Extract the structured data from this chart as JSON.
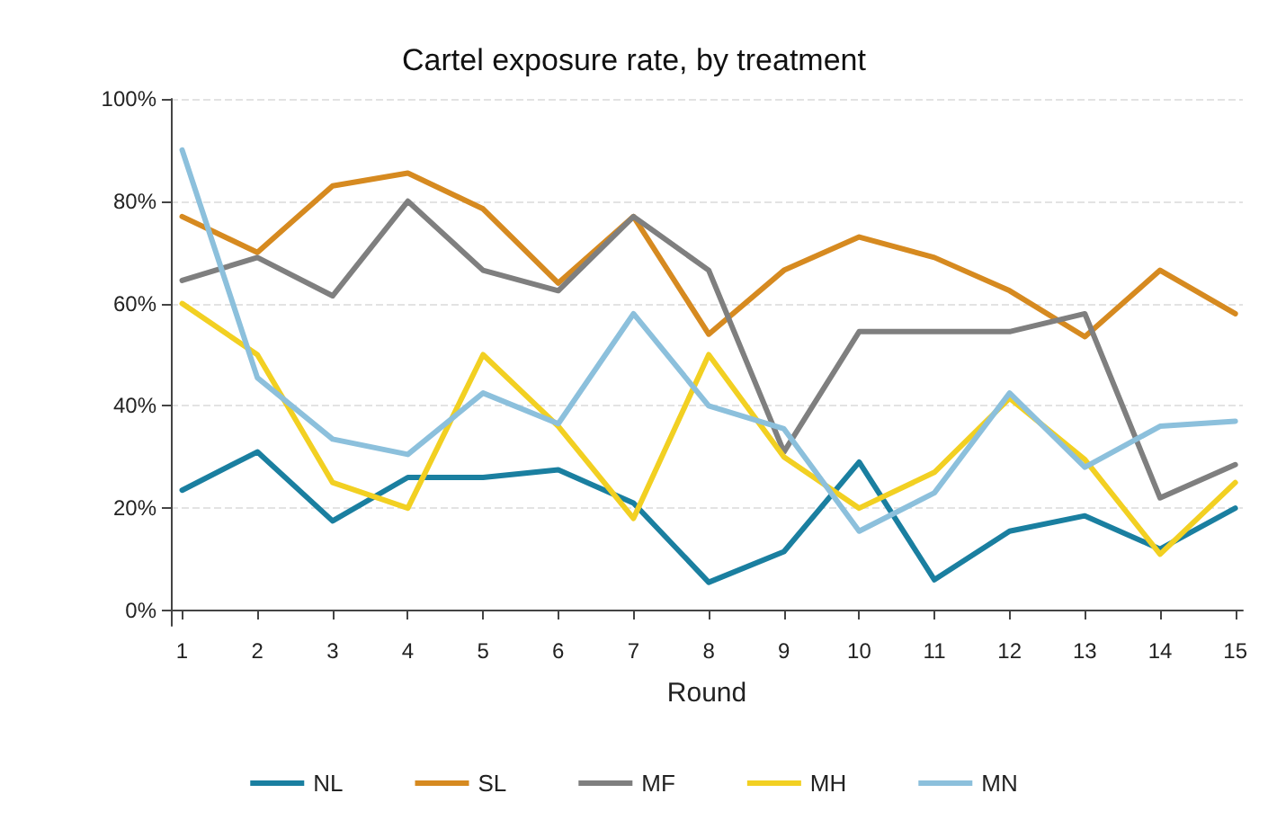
{
  "chart_data": {
    "type": "line",
    "title": "Cartel exposure rate, by treatment",
    "xlabel": "Round",
    "x": [
      1,
      2,
      3,
      4,
      5,
      6,
      7,
      8,
      9,
      10,
      11,
      12,
      13,
      14,
      15
    ],
    "series": [
      {
        "name": "NL",
        "color": "#1a7fa0",
        "values": [
          23.5,
          31,
          17.5,
          26,
          26,
          27.5,
          21,
          5.5,
          11.5,
          29,
          6,
          15.5,
          18.5,
          12,
          20
        ]
      },
      {
        "name": "SL",
        "color": "#d68a20",
        "values": [
          77,
          70,
          83,
          85.5,
          78.5,
          64,
          77,
          54,
          66.5,
          73,
          69,
          62.5,
          53.5,
          66.5,
          58
        ]
      },
      {
        "name": "MF",
        "color": "#7f7f7f",
        "values": [
          64.5,
          69,
          61.5,
          80,
          66.5,
          62.5,
          77,
          66.5,
          31,
          54.5,
          54.5,
          54.5,
          58,
          22,
          28.5
        ]
      },
      {
        "name": "MH",
        "color": "#f2d022",
        "values": [
          60,
          50,
          25,
          20,
          50,
          36,
          18,
          50,
          30,
          20,
          27,
          41.5,
          29.5,
          11,
          25
        ]
      },
      {
        "name": "MN",
        "color": "#8cc0dc",
        "values": [
          90,
          45.5,
          33.5,
          30.5,
          42.5,
          36.5,
          58,
          40,
          35.5,
          15.5,
          23,
          42.5,
          28,
          36,
          37
        ]
      }
    ],
    "xlim": [
      0.85,
      15.1
    ],
    "xticks": [
      1,
      2,
      3,
      4,
      5,
      6,
      7,
      8,
      9,
      10,
      11,
      12,
      13,
      14,
      15
    ],
    "ylim": [
      -3,
      100
    ],
    "yticks": [
      {
        "value": 0,
        "label": "0%"
      },
      {
        "value": 20,
        "label": "20%"
      },
      {
        "value": 40,
        "label": "40%"
      },
      {
        "value": 60,
        "label": "60%"
      },
      {
        "value": 80,
        "label": "80%"
      },
      {
        "value": 100,
        "label": "100%"
      }
    ],
    "grid": "y",
    "legend": "bottom",
    "marker": "none",
    "line_style": "solid"
  }
}
